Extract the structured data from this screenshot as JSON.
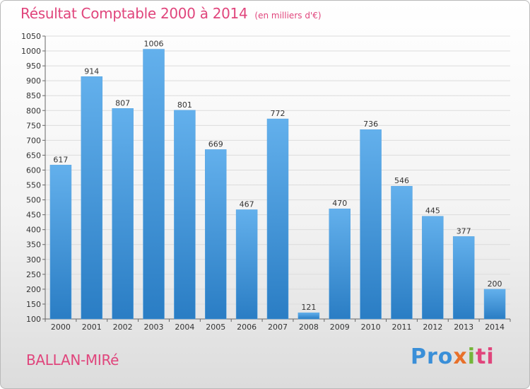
{
  "header": {
    "title": "Résultat Comptable 2000 à 2014",
    "subtitle": "(en milliers d'€)"
  },
  "footer": {
    "commune": "BALLAN-MIRé",
    "logo": [
      "Pro",
      "x",
      "i",
      "ti"
    ]
  },
  "colors": {
    "bar_top": "#63b0ec",
    "bar_bottom": "#2a7dc4",
    "title": "#e0457c",
    "grid": "#dcdcdc"
  },
  "chart_data": {
    "type": "bar",
    "categories": [
      "2000",
      "2001",
      "2002",
      "2003",
      "2004",
      "2005",
      "2006",
      "2007",
      "2008",
      "2009",
      "2010",
      "2011",
      "2012",
      "2013",
      "2014"
    ],
    "values": [
      617,
      914,
      807,
      1006,
      801,
      669,
      467,
      772,
      121,
      470,
      736,
      546,
      445,
      377,
      200
    ],
    "title": "Résultat Comptable 2000 à 2014",
    "subtitle": "(en milliers d'€)",
    "xlabel": "",
    "ylabel": "",
    "ylim": [
      100,
      1050
    ],
    "yticks": [
      100,
      150,
      200,
      250,
      300,
      350,
      400,
      450,
      500,
      550,
      600,
      650,
      700,
      750,
      800,
      850,
      900,
      950,
      1000,
      1050
    ],
    "grid": true
  }
}
